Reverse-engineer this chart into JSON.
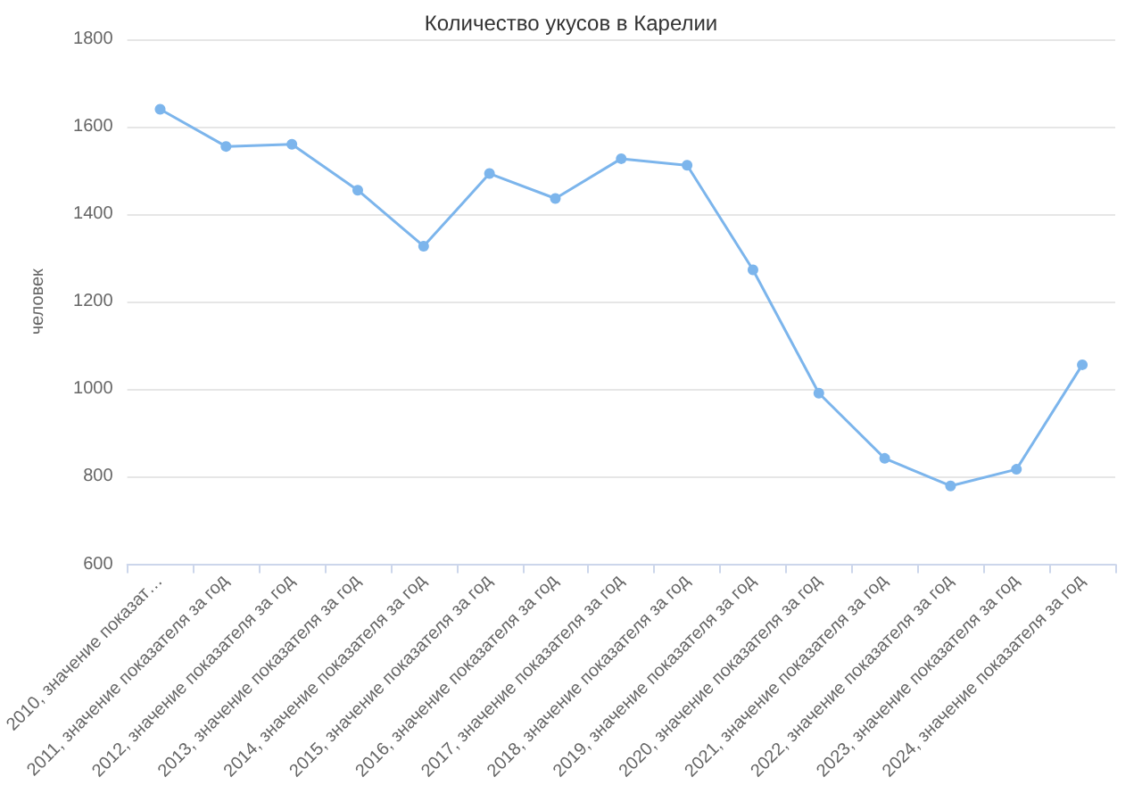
{
  "chart_data": {
    "type": "line",
    "title": "Количество укусов в Карелии",
    "ylabel": "человек",
    "categories": [
      "2010, значение показат…",
      "2011, значение показателя за год",
      "2012, значение показателя за год",
      "2013, значение показателя за год",
      "2014, значение показателя за год",
      "2015, значение показателя за год",
      "2016, значение показателя за год",
      "2017, значение показателя за год",
      "2018, значение показателя за год",
      "2019, значение показателя за год",
      "2020, значение показателя за год",
      "2021, значение показателя за год",
      "2022, значение показателя за год",
      "2023, значение показателя за год",
      "2024, значение показателя за год"
    ],
    "series": [
      {
        "color": "#7cb5ec",
        "values": [
          1640,
          1555,
          1560,
          1455,
          1327,
          1493,
          1436,
          1527,
          1512,
          1273,
          991,
          842,
          779,
          817,
          1056
        ]
      }
    ],
    "ylim": [
      600,
      1800
    ],
    "yticks": [
      600,
      800,
      1000,
      1200,
      1400,
      1600,
      1800
    ],
    "grid": "y",
    "marker": "circle",
    "line_style": "solid"
  }
}
